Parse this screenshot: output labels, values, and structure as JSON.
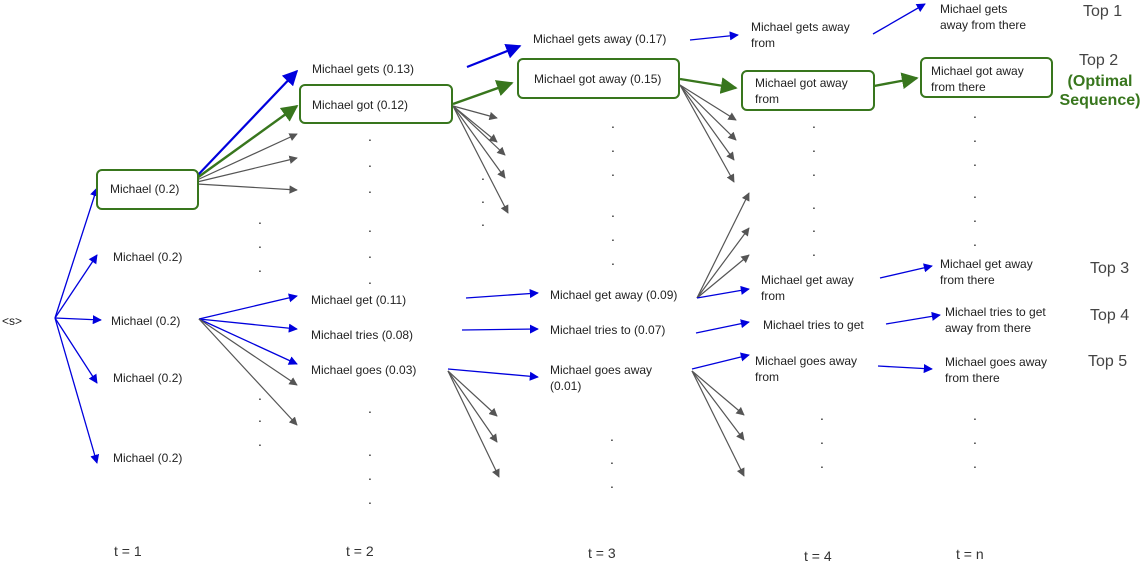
{
  "colors": {
    "blue": "#0000dd",
    "green": "#38761d",
    "gray": "#555555",
    "text": "#222222"
  },
  "start_token": "<s>",
  "t1": {
    "nodes": [
      "Michael (0.2)",
      "Michael (0.2)",
      "Michael (0.2)",
      "Michael (0.2)",
      "Michael (0.2)"
    ]
  },
  "t2": {
    "gets": "Michael gets (0.13)",
    "got": "Michael got (0.12)",
    "get": "Michael get (0.11)",
    "tries": "Michael tries (0.08)",
    "goes": "Michael goes (0.03)"
  },
  "t3": {
    "gets_away": "Michael gets away (0.17)",
    "got_away": "Michael got away (0.15)",
    "get_away": "Michael get away (0.09)",
    "tries_to": "Michael tries to (0.07)",
    "goes_away_1": "Michael goes away",
    "goes_away_2": "(0.01)"
  },
  "t4": {
    "gets_away_from_1": "Michael gets away",
    "gets_away_from_2": "from",
    "got_away_from_1": "Michael got away",
    "got_away_from_2": "from",
    "get_away_from_1": "Michael get away",
    "get_away_from_2": "from",
    "tries_to_get": "Michael tries to get",
    "goes_away_from_1": "Michael goes away",
    "goes_away_from_2": "from"
  },
  "tn": {
    "top1_1": "Michael gets",
    "top1_2": "away from there",
    "top2_1": "Michael got away",
    "top2_2": "from there",
    "top3_1": "Michael get away",
    "top3_2": "from there",
    "top4_1": "Michael tries to get",
    "top4_2": "away from there",
    "top5_1": "Michael goes away",
    "top5_2": "from there"
  },
  "ranks": {
    "top1": "Top 1",
    "top2": "Top 2",
    "top3": "Top 3",
    "top4": "Top 4",
    "top5": "Top 5",
    "optimal_1": "(Optimal",
    "optimal_2": "Sequence)"
  },
  "time_labels": {
    "t1": "t = 1",
    "t2": "t = 2",
    "t3": "t = 3",
    "t4": "t = 4",
    "tn": "t = n"
  }
}
